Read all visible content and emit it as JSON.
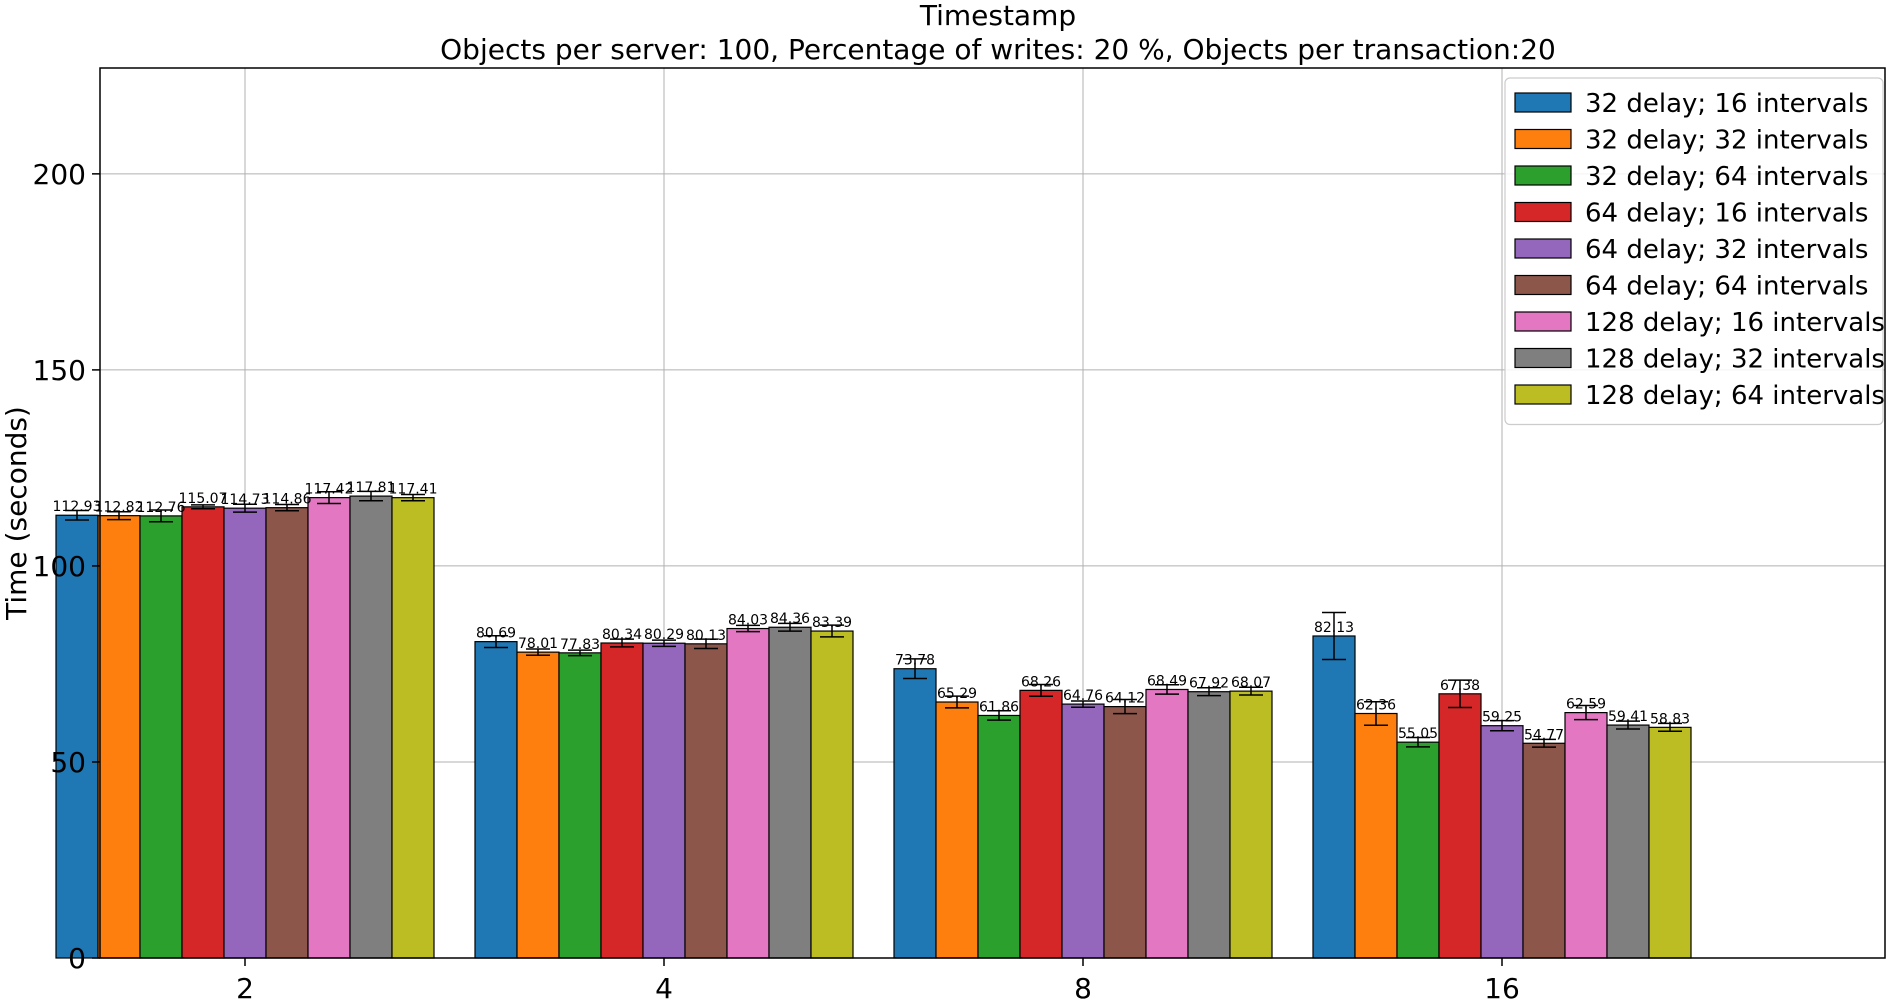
{
  "chart_data": {
    "type": "bar",
    "title": "Timestamp",
    "subtitle": "Objects per server: 100, Percentage of writes: 20 %, Objects per transaction:20",
    "xlabel": "",
    "ylabel": "Time (seconds)",
    "ylim": [
      0,
      227
    ],
    "yticks": [
      0,
      50,
      100,
      150,
      200
    ],
    "categories": [
      "2",
      "4",
      "8",
      "16"
    ],
    "grid": true,
    "legend_position": "top-right",
    "series": [
      {
        "name": "32 delay; 16 intervals",
        "color": "#1f77b4",
        "values": [
          112.93,
          80.69,
          73.78,
          82.13
        ],
        "errors": [
          1.2,
          1.5,
          2.5,
          6.0
        ]
      },
      {
        "name": "32 delay; 32 intervals",
        "color": "#ff7f0e",
        "values": [
          112.82,
          78.01,
          65.29,
          62.36
        ],
        "errors": [
          1.0,
          0.8,
          1.5,
          3.0
        ]
      },
      {
        "name": "32 delay; 64 intervals",
        "color": "#2ca02c",
        "values": [
          112.76,
          77.83,
          61.86,
          55.05
        ],
        "errors": [
          1.5,
          0.7,
          1.2,
          1.2
        ]
      },
      {
        "name": "64 delay; 16 intervals",
        "color": "#d62728",
        "values": [
          115.07,
          80.34,
          68.26,
          67.38
        ],
        "errors": [
          0.5,
          1.0,
          1.5,
          3.5
        ]
      },
      {
        "name": "64 delay; 32 intervals",
        "color": "#9467bd",
        "values": [
          114.73,
          80.29,
          64.76,
          59.25
        ],
        "errors": [
          1.0,
          0.8,
          0.8,
          1.3
        ]
      },
      {
        "name": "64 delay; 64 intervals",
        "color": "#8c564b",
        "values": [
          114.86,
          80.13,
          64.12,
          54.77
        ],
        "errors": [
          0.8,
          1.2,
          1.8,
          1.0
        ]
      },
      {
        "name": "128 delay; 16 intervals",
        "color": "#e377c2",
        "values": [
          117.42,
          84.03,
          68.49,
          62.59
        ],
        "errors": [
          1.5,
          0.8,
          1.2,
          1.8
        ]
      },
      {
        "name": "128 delay; 32 intervals",
        "color": "#7f7f7f",
        "values": [
          117.81,
          84.36,
          67.92,
          59.41
        ],
        "errors": [
          1.2,
          1.0,
          1.0,
          1.0
        ]
      },
      {
        "name": "128 delay; 64 intervals",
        "color": "#bcbd22",
        "values": [
          117.41,
          83.39,
          68.07,
          58.83
        ],
        "errors": [
          0.8,
          1.5,
          1.0,
          1.0
        ]
      }
    ]
  }
}
